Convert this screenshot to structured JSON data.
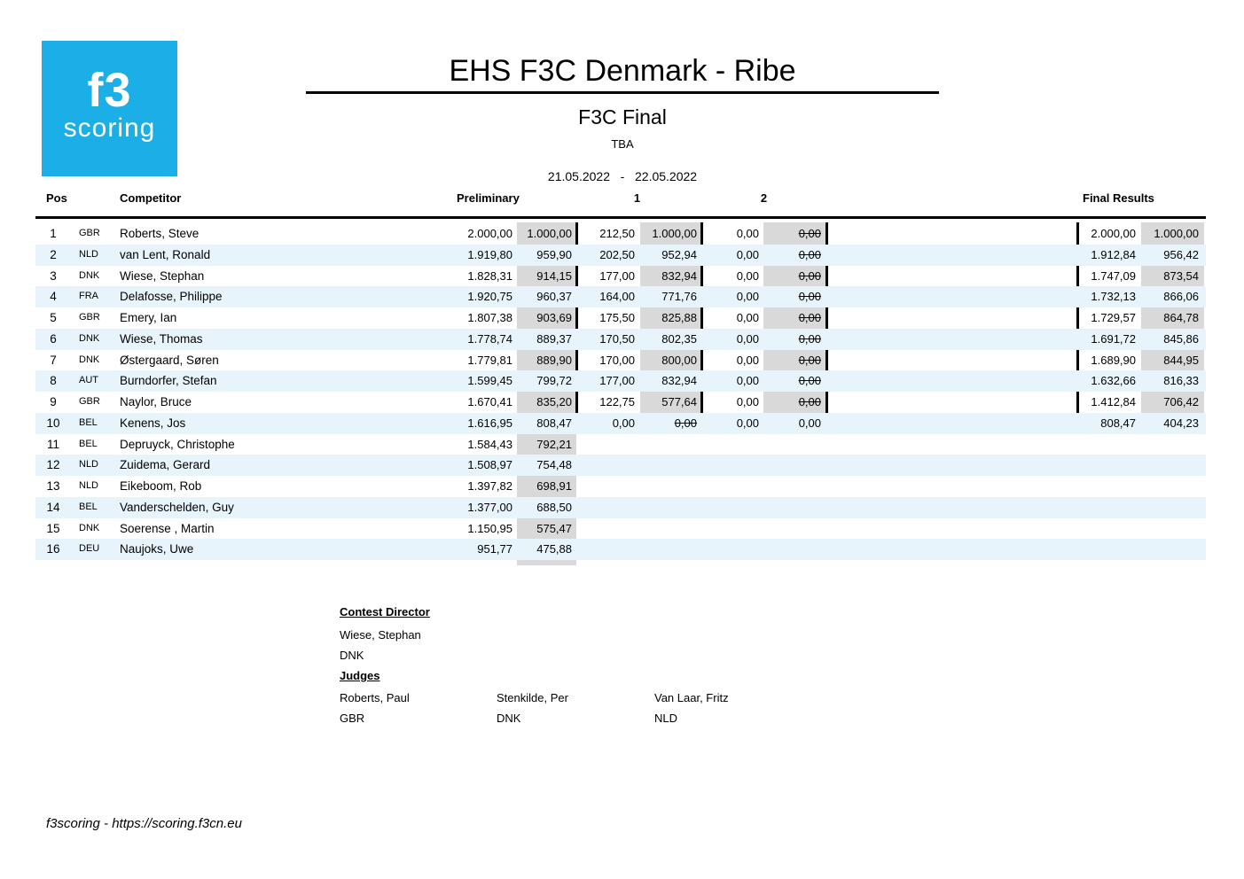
{
  "logo": {
    "line1": "f3",
    "line2": "scoring",
    "color": "#1caee6"
  },
  "header": {
    "title": "EHS F3C Denmark - Ribe",
    "subtitle": "F3C Final",
    "venue": "TBA",
    "date_range": "21.05.2022   -   22.05.2022"
  },
  "table": {
    "headers": {
      "pos": "Pos",
      "competitor": "Competitor",
      "preliminary": "Preliminary",
      "round1": "1",
      "round2": "2",
      "final": "Final Results"
    },
    "rows": [
      {
        "pos": "1",
        "country": "GBR",
        "name": "Roberts, Steve",
        "prelim_raw": "2.000,00",
        "prelim_norm": "1.000,00",
        "r1_raw": "212,50",
        "r1_norm": "1.000,00",
        "r1_norm_struck": false,
        "r2_raw": "0,00",
        "r2_norm": "0,00",
        "r2_norm_struck": true,
        "final_raw": "2.000,00",
        "final_norm": "1.000,00"
      },
      {
        "pos": "2",
        "country": "NLD",
        "name": "van Lent, Ronald",
        "prelim_raw": "1.919,80",
        "prelim_norm": "959,90",
        "r1_raw": "202,50",
        "r1_norm": "952,94",
        "r1_norm_struck": false,
        "r2_raw": "0,00",
        "r2_norm": "0,00",
        "r2_norm_struck": true,
        "final_raw": "1.912,84",
        "final_norm": "956,42"
      },
      {
        "pos": "3",
        "country": "DNK",
        "name": "Wiese, Stephan",
        "prelim_raw": "1.828,31",
        "prelim_norm": "914,15",
        "r1_raw": "177,00",
        "r1_norm": "832,94",
        "r1_norm_struck": false,
        "r2_raw": "0,00",
        "r2_norm": "0,00",
        "r2_norm_struck": true,
        "final_raw": "1.747,09",
        "final_norm": "873,54"
      },
      {
        "pos": "4",
        "country": "FRA",
        "name": "Delafosse, Philippe",
        "prelim_raw": "1.920,75",
        "prelim_norm": "960,37",
        "r1_raw": "164,00",
        "r1_norm": "771,76",
        "r1_norm_struck": false,
        "r2_raw": "0,00",
        "r2_norm": "0,00",
        "r2_norm_struck": true,
        "final_raw": "1.732,13",
        "final_norm": "866,06"
      },
      {
        "pos": "5",
        "country": "GBR",
        "name": "Emery, Ian",
        "prelim_raw": "1.807,38",
        "prelim_norm": "903,69",
        "r1_raw": "175,50",
        "r1_norm": "825,88",
        "r1_norm_struck": false,
        "r2_raw": "0,00",
        "r2_norm": "0,00",
        "r2_norm_struck": true,
        "final_raw": "1.729,57",
        "final_norm": "864,78"
      },
      {
        "pos": "6",
        "country": "DNK",
        "name": "Wiese, Thomas",
        "prelim_raw": "1.778,74",
        "prelim_norm": "889,37",
        "r1_raw": "170,50",
        "r1_norm": "802,35",
        "r1_norm_struck": false,
        "r2_raw": "0,00",
        "r2_norm": "0,00",
        "r2_norm_struck": true,
        "final_raw": "1.691,72",
        "final_norm": "845,86"
      },
      {
        "pos": "7",
        "country": "DNK",
        "name": "Østergaard, Søren",
        "prelim_raw": "1.779,81",
        "prelim_norm": "889,90",
        "r1_raw": "170,00",
        "r1_norm": "800,00",
        "r1_norm_struck": false,
        "r2_raw": "0,00",
        "r2_norm": "0,00",
        "r2_norm_struck": true,
        "final_raw": "1.689,90",
        "final_norm": "844,95"
      },
      {
        "pos": "8",
        "country": "AUT",
        "name": "Burndorfer, Stefan",
        "prelim_raw": "1.599,45",
        "prelim_norm": "799,72",
        "r1_raw": "177,00",
        "r1_norm": "832,94",
        "r1_norm_struck": false,
        "r2_raw": "0,00",
        "r2_norm": "0,00",
        "r2_norm_struck": true,
        "final_raw": "1.632,66",
        "final_norm": "816,33"
      },
      {
        "pos": "9",
        "country": "GBR",
        "name": "Naylor, Bruce",
        "prelim_raw": "1.670,41",
        "prelim_norm": "835,20",
        "r1_raw": "122,75",
        "r1_norm": "577,64",
        "r1_norm_struck": false,
        "r2_raw": "0,00",
        "r2_norm": "0,00",
        "r2_norm_struck": true,
        "final_raw": "1.412,84",
        "final_norm": "706,42"
      },
      {
        "pos": "10",
        "country": "BEL",
        "name": "Kenens, Jos",
        "prelim_raw": "1.616,95",
        "prelim_norm": "808,47",
        "r1_raw": "0,00",
        "r1_norm": "0,00",
        "r1_norm_struck": true,
        "r2_raw": "0,00",
        "r2_norm": "0,00",
        "r2_norm_struck": false,
        "final_raw": "808,47",
        "final_norm": "404,23"
      },
      {
        "pos": "11",
        "country": "BEL",
        "name": "Depruyck, Christophe",
        "prelim_raw": "1.584,43",
        "prelim_norm": "792,21",
        "r1_raw": null,
        "r1_norm": null,
        "r1_norm_struck": false,
        "r2_raw": null,
        "r2_norm": null,
        "r2_norm_struck": false,
        "final_raw": null,
        "final_norm": null
      },
      {
        "pos": "12",
        "country": "NLD",
        "name": "Zuidema, Gerard",
        "prelim_raw": "1.508,97",
        "prelim_norm": "754,48",
        "r1_raw": null,
        "r1_norm": null,
        "r1_norm_struck": false,
        "r2_raw": null,
        "r2_norm": null,
        "r2_norm_struck": false,
        "final_raw": null,
        "final_norm": null
      },
      {
        "pos": "13",
        "country": "NLD",
        "name": "Eikeboom, Rob",
        "prelim_raw": "1.397,82",
        "prelim_norm": "698,91",
        "r1_raw": null,
        "r1_norm": null,
        "r1_norm_struck": false,
        "r2_raw": null,
        "r2_norm": null,
        "r2_norm_struck": false,
        "final_raw": null,
        "final_norm": null
      },
      {
        "pos": "14",
        "country": "BEL",
        "name": "Vanderschelden, Guy",
        "prelim_raw": "1.377,00",
        "prelim_norm": "688,50",
        "r1_raw": null,
        "r1_norm": null,
        "r1_norm_struck": false,
        "r2_raw": null,
        "r2_norm": null,
        "r2_norm_struck": false,
        "final_raw": null,
        "final_norm": null
      },
      {
        "pos": "15",
        "country": "DNK",
        "name": "Soerense , Martin",
        "prelim_raw": "1.150,95",
        "prelim_norm": "575,47",
        "r1_raw": null,
        "r1_norm": null,
        "r1_norm_struck": false,
        "r2_raw": null,
        "r2_norm": null,
        "r2_norm_struck": false,
        "final_raw": null,
        "final_norm": null
      },
      {
        "pos": "16",
        "country": "DEU",
        "name": "Naujoks, Uwe",
        "prelim_raw": "951,77",
        "prelim_norm": "475,88",
        "r1_raw": null,
        "r1_norm": null,
        "r1_norm_struck": false,
        "r2_raw": null,
        "r2_norm": null,
        "r2_norm_struck": false,
        "final_raw": null,
        "final_norm": null
      }
    ]
  },
  "officials": {
    "director_heading": "Contest Director",
    "director": {
      "name": "Wiese, Stephan",
      "country": "DNK"
    },
    "judges_heading": "Judges",
    "judges": [
      {
        "name": "Roberts, Paul",
        "country": "GBR"
      },
      {
        "name": "Stenkilde, Per",
        "country": "DNK"
      },
      {
        "name": "Van Laar, Fritz",
        "country": "NLD"
      }
    ]
  },
  "footer": {
    "text": "f3scoring - https://scoring.f3cn.eu"
  }
}
